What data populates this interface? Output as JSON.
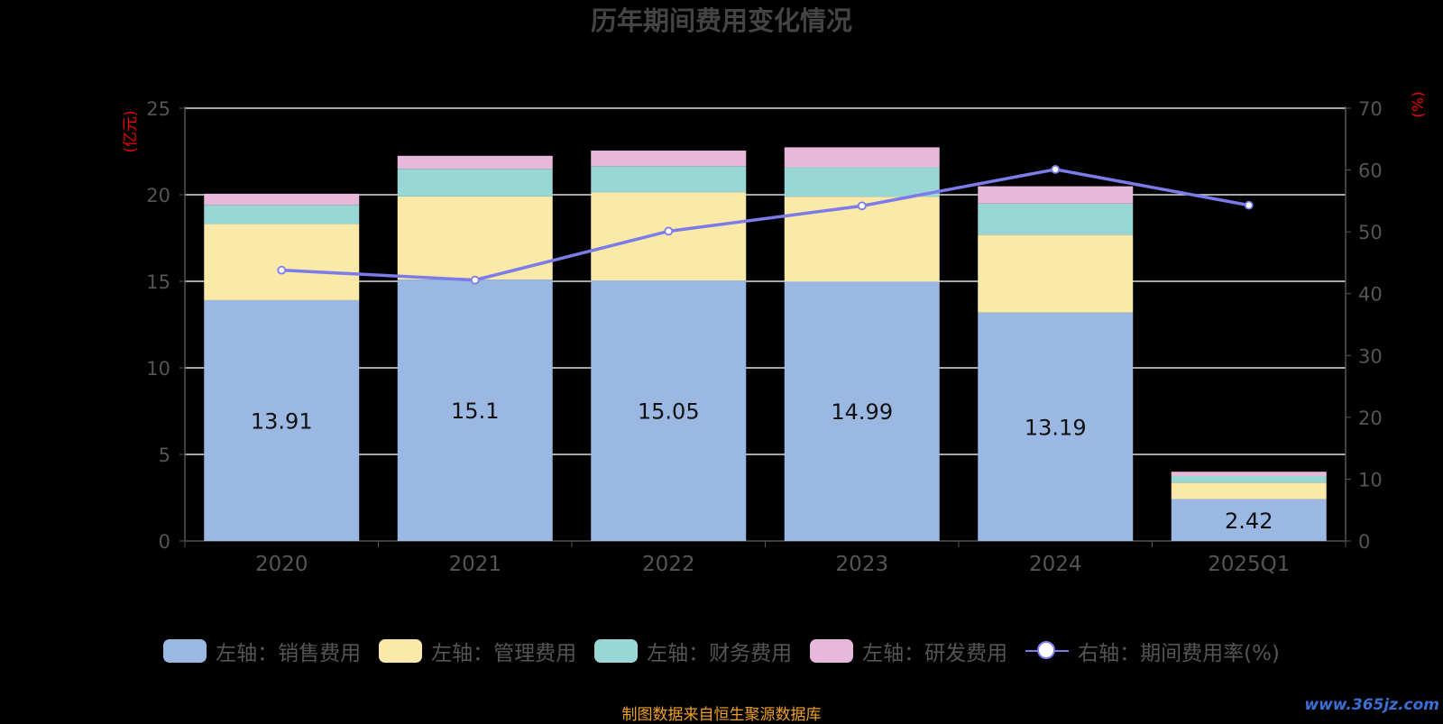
{
  "chart_data": {
    "type": "bar",
    "title": "历年期间费用变化情况",
    "categories": [
      "2020",
      "2021",
      "2022",
      "2023",
      "2024",
      "2025Q1"
    ],
    "ylabel_left": "(亿元)",
    "ylabel_right": "(%)",
    "ylim_left": [
      0,
      25
    ],
    "ylim_right": [
      0,
      70
    ],
    "yticks_left": [
      "0",
      "5",
      "10",
      "15",
      "20",
      "25"
    ],
    "yticks_right": [
      "0",
      "10",
      "20",
      "30",
      "40",
      "50",
      "60",
      "70"
    ],
    "grid": true,
    "stacked": true,
    "series": [
      {
        "name": "左轴：销售费用",
        "kind": "bar",
        "color": "#9bb8e3",
        "values": [
          13.91,
          15.1,
          15.05,
          14.99,
          13.19,
          2.42
        ],
        "show_labels": true
      },
      {
        "name": "左轴：管理费用",
        "kind": "bar",
        "color": "#fae9a8",
        "values": [
          4.4,
          4.8,
          5.1,
          4.9,
          4.5,
          0.95
        ]
      },
      {
        "name": "左轴：财务费用",
        "kind": "bar",
        "color": "#99d6d6",
        "values": [
          1.1,
          1.6,
          1.5,
          1.7,
          1.8,
          0.38
        ]
      },
      {
        "name": "左轴：研发费用",
        "kind": "bar",
        "color": "#e8b8dc",
        "values": [
          0.65,
          0.75,
          0.9,
          1.15,
          1.0,
          0.25
        ]
      },
      {
        "name": "右轴：期间费用率(%)",
        "kind": "line",
        "axis": "right",
        "color": "#7b7bea",
        "values": [
          43.8,
          42.2,
          50.1,
          54.2,
          60.1,
          54.3
        ]
      }
    ]
  },
  "footer": "制图数据来自恒生聚源数据库",
  "watermark": "www.365jz.com"
}
